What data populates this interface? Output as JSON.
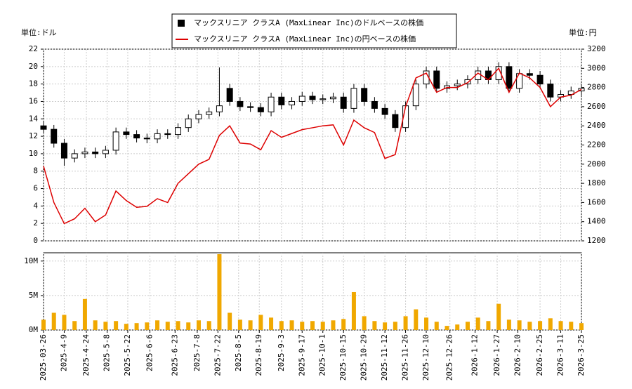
{
  "chart_data": {
    "type": "candlestick",
    "x": [
      "2025-03-26",
      "2025-04-02",
      "2025-04-09",
      "2025-04-16",
      "2025-04-23",
      "2025-04-30",
      "2025-05-07",
      "2025-05-14",
      "2025-05-21",
      "2025-05-28",
      "2025-06-04",
      "2025-06-11",
      "2025-06-18",
      "2025-06-25",
      "2025-07-02",
      "2025-07-09",
      "2025-07-16",
      "2025-07-23",
      "2025-07-30",
      "2025-08-06",
      "2025-08-13",
      "2025-08-20",
      "2025-08-27",
      "2025-09-03",
      "2025-09-10",
      "2025-09-17",
      "2025-09-24",
      "2025-10-01",
      "2025-10-08",
      "2025-10-15",
      "2025-10-22",
      "2025-10-29",
      "2025-11-05",
      "2025-11-12",
      "2025-11-19",
      "2025-11-26",
      "2025-12-03",
      "2025-12-10",
      "2025-12-17",
      "2025-12-24",
      "2025-12-31",
      "2026-01-07",
      "2026-01-14",
      "2026-01-21",
      "2026-01-28",
      "2026-02-04",
      "2026-02-11",
      "2026-02-18",
      "2026-02-25",
      "2026-03-04",
      "2026-03-11",
      "2026-03-18",
      "2026-03-25"
    ],
    "xlim": [
      "2025-03-26",
      "2026-03-25"
    ],
    "xticks": [
      "2025-03-26",
      "2025-4-9",
      "2025-4-24",
      "2025-5-8",
      "2025-5-22",
      "2025-6-6",
      "2025-6-23",
      "2025-7-8",
      "2025-7-22",
      "2025-8-5",
      "2025-8-19",
      "2025-9-3",
      "2025-9-17",
      "2025-10-1",
      "2025-10-15",
      "2025-10-29",
      "2025-11-12",
      "2025-11-26",
      "2025-12-10",
      "2025-12-26",
      "2026-1-12",
      "2026-1-27",
      "2026-2-10",
      "2026-2-25",
      "2026-3-11",
      "2026-3-25"
    ],
    "series": [
      {
        "name": "マックスリニア クラスA (MaxLinear Inc)のドルベースの株価",
        "color": "#000000",
        "open": [
          13.2,
          12.8,
          11.2,
          9.5,
          10.0,
          10.2,
          10.0,
          10.4,
          12.5,
          12.2,
          11.8,
          11.7,
          12.3,
          12.2,
          13.0,
          14.0,
          14.5,
          14.8,
          17.5,
          16.0,
          15.4,
          15.3,
          14.8,
          16.5,
          15.6,
          16.0,
          16.6,
          16.2,
          16.3,
          16.5,
          15.2,
          17.5,
          16.0,
          15.2,
          14.5,
          13.0,
          15.5,
          18.0,
          19.5,
          17.5,
          17.8,
          18.0,
          18.5,
          19.5,
          18.5,
          20.0,
          17.5,
          19.2,
          19.0,
          18.0,
          16.5,
          16.8,
          17.2
        ],
        "high": [
          13.7,
          13.3,
          11.7,
          10.5,
          10.7,
          10.7,
          10.9,
          13.0,
          13.0,
          12.7,
          12.3,
          12.8,
          12.8,
          13.5,
          14.5,
          15.0,
          15.3,
          19.9,
          18.0,
          16.5,
          15.9,
          15.8,
          17.0,
          17.0,
          16.5,
          17.1,
          17.1,
          16.8,
          17.0,
          17.0,
          18.0,
          18.0,
          16.5,
          15.7,
          15.0,
          16.0,
          18.5,
          20.0,
          20.0,
          18.3,
          18.5,
          19.0,
          20.0,
          20.0,
          20.5,
          20.5,
          19.7,
          19.7,
          19.5,
          18.5,
          17.3,
          17.7,
          18.0
        ],
        "low": [
          12.3,
          10.7,
          8.6,
          9.0,
          9.5,
          9.5,
          9.5,
          9.9,
          11.7,
          11.3,
          11.2,
          11.2,
          11.7,
          11.7,
          12.5,
          13.5,
          14.0,
          14.3,
          15.5,
          14.9,
          14.8,
          14.3,
          14.3,
          15.1,
          15.1,
          15.5,
          15.7,
          15.7,
          15.8,
          14.7,
          14.7,
          15.5,
          14.7,
          14.0,
          12.5,
          12.5,
          15.0,
          17.5,
          17.0,
          17.0,
          17.3,
          17.5,
          18.0,
          18.0,
          18.0,
          17.0,
          17.0,
          18.5,
          17.5,
          16.0,
          16.0,
          16.3,
          16.7
        ],
        "close": [
          12.8,
          11.2,
          9.5,
          10.0,
          10.2,
          10.0,
          10.4,
          12.5,
          12.2,
          11.8,
          11.7,
          12.3,
          12.2,
          13.0,
          14.0,
          14.5,
          14.8,
          15.5,
          16.0,
          15.4,
          15.3,
          14.8,
          16.5,
          15.6,
          16.0,
          16.6,
          16.2,
          16.3,
          16.5,
          15.2,
          17.5,
          16.0,
          15.2,
          14.5,
          13.0,
          15.5,
          18.0,
          19.5,
          17.5,
          17.8,
          18.0,
          18.5,
          19.5,
          18.5,
          20.0,
          17.5,
          19.2,
          19.0,
          18.0,
          16.5,
          16.8,
          17.2,
          17.5
        ]
      },
      {
        "name": "マックスリニア クラスA (MaxLinear Inc)の円ベースの株価",
        "color": "#dd0000",
        "axis": "y2",
        "values": [
          1980,
          1600,
          1380,
          1430,
          1540,
          1400,
          1470,
          1720,
          1620,
          1550,
          1560,
          1640,
          1600,
          1800,
          1900,
          2000,
          2050,
          2300,
          2400,
          2220,
          2210,
          2150,
          2350,
          2280,
          2320,
          2360,
          2380,
          2400,
          2410,
          2200,
          2460,
          2380,
          2330,
          2060,
          2100,
          2600,
          2900,
          2950,
          2750,
          2800,
          2800,
          2850,
          2950,
          2880,
          3000,
          2750,
          2950,
          2900,
          2800,
          2600,
          2700,
          2720,
          2780
        ]
      }
    ],
    "ylim": [
      0,
      22
    ],
    "yticks": [
      0,
      2,
      4,
      6,
      8,
      10,
      12,
      14,
      16,
      18,
      20,
      22
    ],
    "y2lim": [
      1200,
      3200
    ],
    "y2ticks": [
      1200,
      1400,
      1600,
      1800,
      2000,
      2200,
      2400,
      2600,
      2800,
      3000,
      3200
    ],
    "y_unit_label": "単位:ドル",
    "y2_unit_label": "単位:円",
    "grid": true,
    "volume": {
      "color": "#f0a800",
      "values": [
        1500000,
        2500000,
        2200000,
        1300000,
        4500000,
        1400000,
        1200000,
        1300000,
        900000,
        1000000,
        1100000,
        1400000,
        1200000,
        1300000,
        1100000,
        1400000,
        1300000,
        11000000,
        2500000,
        1500000,
        1400000,
        2200000,
        1800000,
        1300000,
        1400000,
        1200000,
        1300000,
        1200000,
        1400000,
        1600000,
        5500000,
        2000000,
        1300000,
        1100000,
        1200000,
        2000000,
        3000000,
        1800000,
        1200000,
        600000,
        800000,
        1200000,
        1800000,
        1300000,
        3800000,
        1500000,
        1400000,
        1200000,
        1300000,
        1700000,
        1300000,
        1200000,
        1000000
      ],
      "ylim": [
        0,
        11200000
      ],
      "yticks": [
        {
          "value": 0,
          "label": "0M"
        },
        {
          "value": 5000000,
          "label": "5M"
        },
        {
          "value": 10000000,
          "label": "10M"
        }
      ]
    }
  }
}
